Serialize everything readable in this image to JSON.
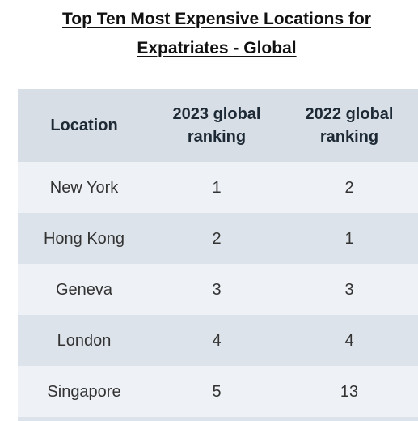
{
  "title": {
    "line1": "Top Ten Most Expensive Locations for",
    "line2": "Expatriates - Global"
  },
  "table": {
    "headers": [
      "Location",
      "2023 global ranking",
      "2022 global ranking"
    ],
    "rows": [
      {
        "location": "New York",
        "rank_2023": "1",
        "rank_2022": "2"
      },
      {
        "location": "Hong Kong",
        "rank_2023": "2",
        "rank_2022": "1"
      },
      {
        "location": "Geneva",
        "rank_2023": "3",
        "rank_2022": "3"
      },
      {
        "location": "London",
        "rank_2023": "4",
        "rank_2022": "4"
      },
      {
        "location": "Singapore",
        "rank_2023": "5",
        "rank_2022": "13"
      }
    ]
  },
  "colors": {
    "header_bg": "#d8dee6",
    "row_light": "#eef2f6",
    "row_dark": "#dde3ea"
  }
}
